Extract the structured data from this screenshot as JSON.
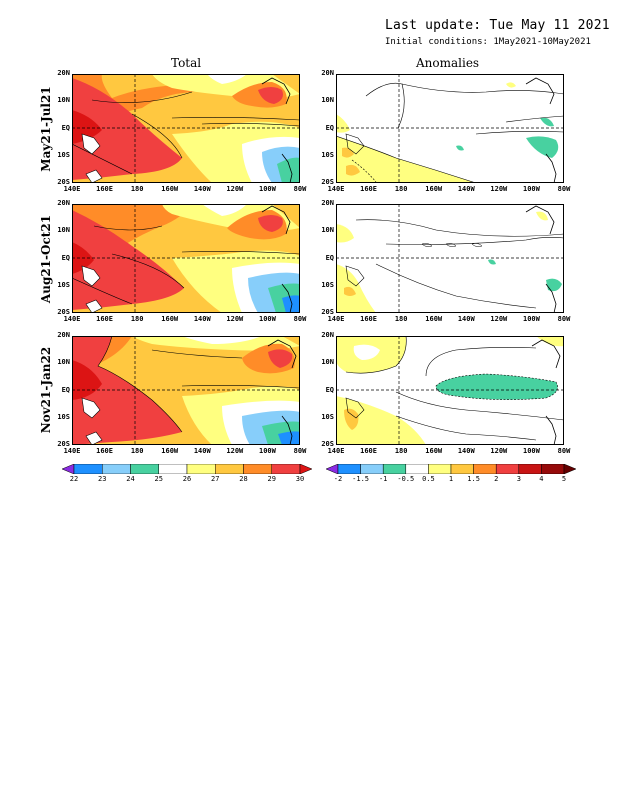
{
  "header": {
    "last_update": "Last update: Tue May 11 2021",
    "initial_conditions": "Initial conditions: 1May2021-10May2021"
  },
  "columns": {
    "total": "Total",
    "anomalies": "Anomalies"
  },
  "rows": [
    "May21-Jul21",
    "Aug21-Oct21",
    "Nov21-Jan22"
  ],
  "lat_labels": [
    "20N",
    "10N",
    "EQ",
    "10S",
    "20S"
  ],
  "lon_labels": [
    "140E",
    "160E",
    "180",
    "160W",
    "140W",
    "120W",
    "100W",
    "80W"
  ],
  "colorbars": {
    "total": {
      "colors": [
        "#8a2be2",
        "#1e90ff",
        "#87cefa",
        "#48d1a0",
        "#ffffff",
        "#ffff80",
        "#ffc840",
        "#ff8c28",
        "#f04040",
        "#dc1414"
      ],
      "labels": [
        "22",
        "23",
        "24",
        "25",
        "26",
        "27",
        "28",
        "29",
        "30"
      ]
    },
    "anomalies": {
      "colors": [
        "#8a2be2",
        "#1e90ff",
        "#87cefa",
        "#48d1a0",
        "#ffffff",
        "#ffff80",
        "#ffc840",
        "#ff8c28",
        "#f04040",
        "#c81414",
        "#960a0a",
        "#640000"
      ],
      "labels": [
        "-2",
        "-1.5",
        "-1",
        "-0.5",
        "0.5",
        "1",
        "1.5",
        "2",
        "3",
        "4",
        "5"
      ]
    }
  },
  "chart_data": [
    {
      "type": "heatmap",
      "title": "Total",
      "panels": [
        "May21-Jul21",
        "Aug21-Oct21",
        "Nov21-Jan22"
      ],
      "x_ticks": [
        "140E",
        "160E",
        "180",
        "160W",
        "140W",
        "120W",
        "100W",
        "80W"
      ],
      "y_ticks": [
        "20N",
        "10N",
        "EQ",
        "10S",
        "20S"
      ],
      "legend_levels": [
        22,
        23,
        24,
        25,
        26,
        27,
        28,
        29,
        30
      ]
    },
    {
      "type": "heatmap",
      "title": "Anomalies",
      "panels": [
        "May21-Jul21",
        "Aug21-Oct21",
        "Nov21-Jan22"
      ],
      "x_ticks": [
        "140E",
        "160E",
        "180",
        "160W",
        "140W",
        "120W",
        "100W",
        "80W"
      ],
      "y_ticks": [
        "20N",
        "10N",
        "EQ",
        "10S",
        "20S"
      ],
      "legend_levels": [
        -2,
        -1.5,
        -1,
        -0.5,
        0.5,
        1,
        1.5,
        2,
        3,
        4,
        5
      ]
    }
  ]
}
